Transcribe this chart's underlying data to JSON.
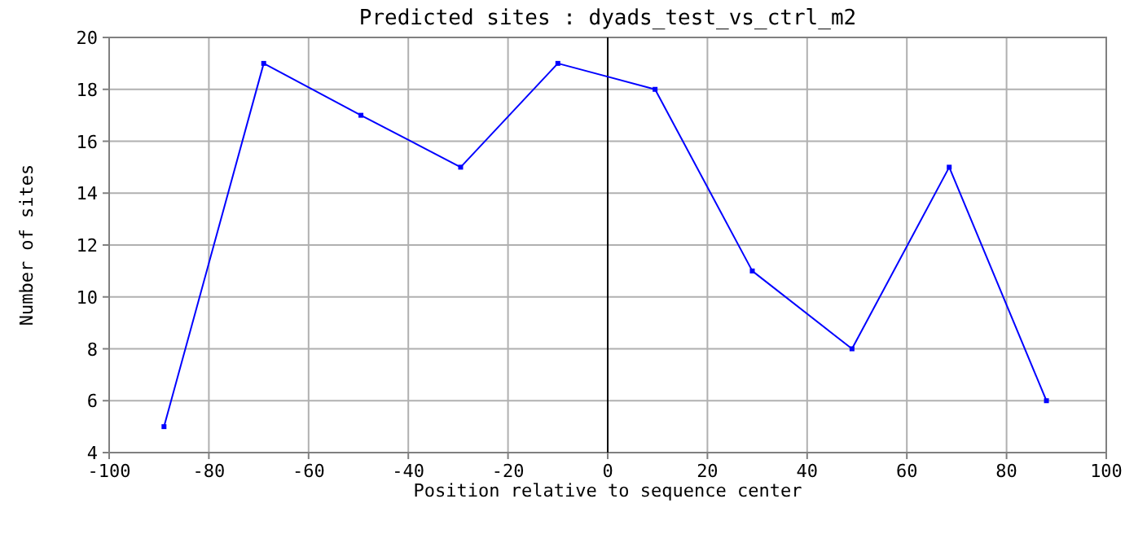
{
  "chart_data": {
    "type": "line",
    "title": "Predicted sites : dyads_test_vs_ctrl_m2",
    "xlabel": "Position relative to sequence center",
    "ylabel": "Number of sites",
    "x": [
      -89,
      -69,
      -49.5,
      -29.5,
      -10,
      9.5,
      29,
      49,
      68.5,
      88
    ],
    "series": [
      {
        "color": "#0000ff",
        "values": [
          5,
          19,
          17,
          15,
          19,
          18,
          11,
          8,
          15,
          6
        ]
      }
    ],
    "xlim": [
      -100,
      100
    ],
    "xticks": [
      -100,
      -80,
      -60,
      -40,
      -20,
      0,
      20,
      40,
      60,
      80,
      100
    ],
    "ylim": [
      4,
      20
    ],
    "yticks": [
      4,
      6,
      8,
      10,
      12,
      14,
      16,
      18,
      20
    ],
    "grid": true,
    "marker": "square",
    "line_style": "solid",
    "ref_lines": [
      {
        "axis": "x",
        "value": 0,
        "color": "#000000"
      }
    ]
  }
}
